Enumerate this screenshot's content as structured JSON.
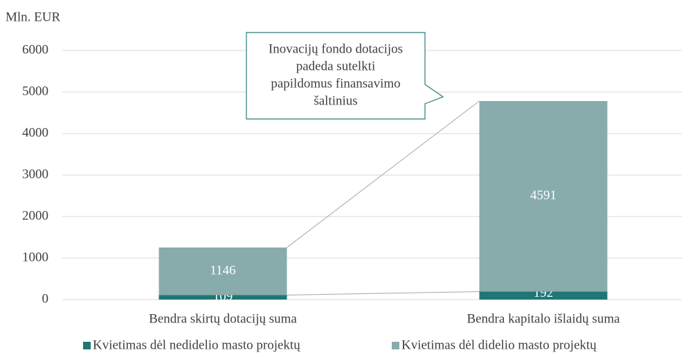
{
  "chart_data": {
    "type": "stacked_bar",
    "unit_label": "Mln. EUR",
    "categories": [
      "Bendra skirtų dotacijų suma",
      "Bendra kapitalo išlaidų suma"
    ],
    "series": [
      {
        "name": "Kvietimas dėl nedidelio masto projektų",
        "color": "#1f7775",
        "values": [
          109,
          192
        ]
      },
      {
        "name": "Kvietimas dėl didelio masto projektų",
        "color": "#88abac",
        "values": [
          1146,
          4591
        ]
      }
    ],
    "ylim": [
      0,
      6000
    ],
    "yticks": [
      0,
      1000,
      2000,
      3000,
      4000,
      5000,
      6000
    ],
    "grid": true,
    "legend": "bottom",
    "annotation": [
      "Inovacijų fondo dotacijos",
      "padeda sutelkti",
      "papildomus finansavimo",
      "šaltinius"
    ]
  }
}
